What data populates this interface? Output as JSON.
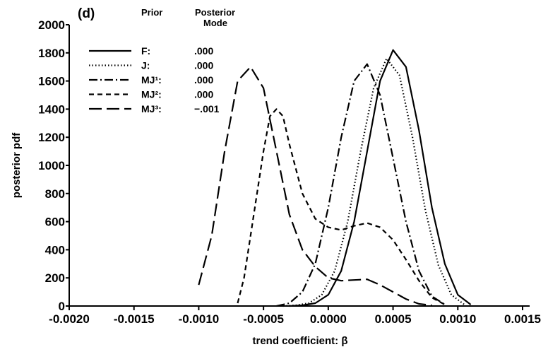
{
  "chart_data": {
    "type": "line",
    "panel_label": "(d)",
    "xlabel": "trend coefficient: β",
    "ylabel": "posterior pdf",
    "xlim": [
      -0.002,
      0.0015
    ],
    "ylim": [
      0,
      2000
    ],
    "x_ticks": [
      "-0.0020",
      "-0.0015",
      "-0.0010",
      "-0.0005",
      "0.0000",
      "0.0005",
      "0.0010",
      "0.0015"
    ],
    "y_ticks": [
      "0",
      "200",
      "400",
      "600",
      "800",
      "1000",
      "1200",
      "1400",
      "1600",
      "1800",
      "2000"
    ],
    "legend": {
      "placement": "top-left",
      "header_prior": "Prior",
      "header_mode_line1": "Posterior",
      "header_mode_line2": "Mode"
    },
    "series": [
      {
        "name": "F:",
        "mode": ".000",
        "dash": "solid",
        "x": [
          -0.0003,
          -0.0002,
          -0.0001,
          0.0,
          0.0001,
          0.0002,
          0.0003,
          0.0004,
          0.0005,
          0.0006,
          0.0007,
          0.0008,
          0.0009,
          0.001,
          0.0011
        ],
        "y": [
          0,
          5,
          20,
          80,
          250,
          600,
          1100,
          1600,
          1820,
          1700,
          1250,
          700,
          300,
          80,
          10
        ]
      },
      {
        "name": "J:",
        "mode": ".000",
        "dash": "dotted",
        "x": [
          -0.00035,
          -0.00025,
          -0.00015,
          -5e-05,
          5e-05,
          0.00015,
          0.00025,
          0.00035,
          0.00045,
          0.00055,
          0.00065,
          0.00075,
          0.00085,
          0.00095,
          0.00105
        ],
        "y": [
          0,
          5,
          20,
          80,
          250,
          600,
          1100,
          1550,
          1760,
          1640,
          1200,
          680,
          290,
          80,
          10
        ]
      },
      {
        "name": "MJ¹:",
        "mode": ".000",
        "dash": "dashdot",
        "x": [
          -0.0004,
          -0.0003,
          -0.0002,
          -0.0001,
          0.0,
          0.0001,
          0.0002,
          0.0003,
          0.0004,
          0.0005,
          0.0006,
          0.0007,
          0.0008,
          0.0009
        ],
        "y": [
          0,
          20,
          100,
          300,
          700,
          1200,
          1600,
          1720,
          1500,
          1050,
          600,
          250,
          70,
          10
        ]
      },
      {
        "name": "MJ²:",
        "mode": ".000",
        "dash": "dashed",
        "x": [
          -0.0007,
          -0.00065,
          -0.0006,
          -0.0005,
          -0.00045,
          -0.0004,
          -0.00035,
          -0.0003,
          -0.0002,
          -0.0001,
          0.0,
          0.0001,
          0.0002,
          0.0003,
          0.0004,
          0.0005,
          0.0006,
          0.0007,
          0.0008,
          0.0009
        ],
        "y": [
          20,
          200,
          500,
          1100,
          1350,
          1400,
          1350,
          1150,
          800,
          620,
          560,
          540,
          570,
          590,
          560,
          470,
          330,
          180,
          60,
          10
        ]
      },
      {
        "name": "MJ³:",
        "mode": "−.001",
        "dash": "longdash",
        "x": [
          -0.001,
          -0.0009,
          -0.0008,
          -0.0007,
          -0.0006,
          -0.0005,
          -0.0004,
          -0.0003,
          -0.0002,
          -0.0001,
          0.0,
          0.0001,
          0.0002,
          0.0003,
          0.0004,
          0.0005,
          0.0006,
          0.0007,
          0.0008
        ],
        "y": [
          150,
          500,
          1100,
          1600,
          1700,
          1550,
          1100,
          650,
          400,
          280,
          200,
          180,
          185,
          190,
          150,
          100,
          50,
          15,
          5
        ]
      }
    ]
  }
}
